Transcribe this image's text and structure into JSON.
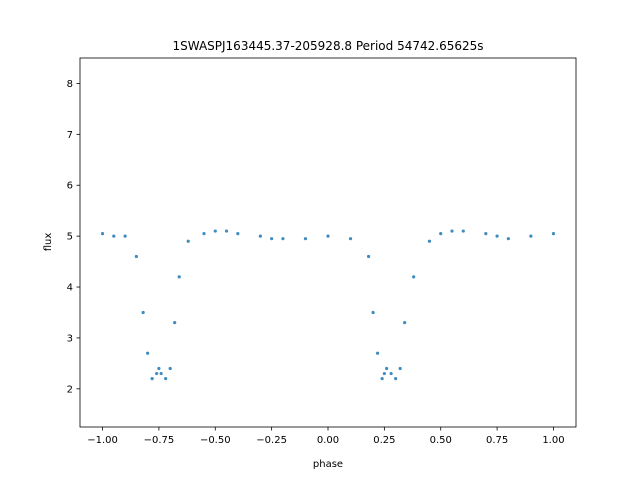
{
  "chart_data": {
    "type": "scatter",
    "title": "1SWASPJ163445.37-205928.8 Period 54742.65625s",
    "xlabel": "phase",
    "ylabel": "flux",
    "xlim": [
      -1.1,
      1.1
    ],
    "ylim": [
      1.25,
      8.5
    ],
    "xticks": [
      -1.0,
      -0.75,
      -0.5,
      -0.25,
      0.0,
      0.25,
      0.5,
      0.75,
      1.0
    ],
    "xtick_labels": [
      "−1.00",
      "−0.75",
      "−0.50",
      "−0.25",
      "0.00",
      "0.25",
      "0.50",
      "0.75",
      "1.00"
    ],
    "yticks": [
      2,
      3,
      4,
      5,
      6,
      7,
      8
    ],
    "ytick_labels": [
      "2",
      "3",
      "4",
      "5",
      "6",
      "7",
      "8"
    ],
    "grid": false,
    "point_color": "#1f77b4",
    "series": [
      {
        "x": [
          -1.0,
          -0.95,
          -0.9,
          -0.85,
          -0.82,
          -0.8,
          -0.78,
          -0.76,
          -0.75,
          -0.74,
          -0.72,
          -0.7,
          -0.68,
          -0.66,
          -0.62,
          -0.55,
          -0.5,
          -0.45,
          -0.4,
          -0.3,
          -0.25,
          -0.2,
          -0.1,
          0.0,
          0.1,
          0.18,
          0.2,
          0.22,
          0.24,
          0.25,
          0.26,
          0.28,
          0.3,
          0.32,
          0.34,
          0.38,
          0.45,
          0.5,
          0.55,
          0.6,
          0.7,
          0.75,
          0.8,
          0.9,
          1.0
        ],
        "y": [
          5.05,
          5.0,
          5.0,
          4.6,
          3.5,
          2.7,
          2.2,
          2.3,
          2.4,
          2.3,
          2.2,
          2.4,
          3.3,
          4.2,
          4.9,
          5.05,
          5.1,
          5.1,
          5.05,
          5.0,
          4.95,
          4.95,
          4.95,
          5.0,
          4.95,
          4.6,
          3.5,
          2.7,
          2.2,
          2.3,
          2.4,
          2.3,
          2.2,
          2.4,
          3.3,
          4.2,
          4.9,
          5.05,
          5.1,
          5.1,
          5.05,
          5.0,
          4.95,
          5.0,
          5.05
        ]
      }
    ]
  }
}
